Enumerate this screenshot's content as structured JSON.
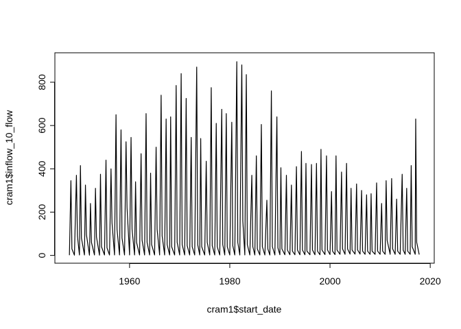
{
  "chart_data": {
    "type": "line",
    "xlabel": "cram1$start_date",
    "ylabel": "cram1$inflow_10_flow",
    "xlim": [
      1945.1,
      2020.8
    ],
    "ylim": [
      -36,
      936
    ],
    "xticks": [
      1960,
      1980,
      2000,
      2020
    ],
    "yticks": [
      0,
      200,
      400,
      600,
      800
    ],
    "color": "#000000",
    "x": [
      1948.0,
      1948.3,
      1948.5,
      1949.0,
      1949.4,
      1949.6,
      1950.0,
      1950.2,
      1950.4,
      1951.0,
      1951.2,
      1951.4,
      1952.0,
      1952.2,
      1952.4,
      1953.0,
      1953.2,
      1953.4,
      1954.0,
      1954.2,
      1954.4,
      1955.0,
      1955.3,
      1955.5,
      1956.0,
      1956.3,
      1956.5,
      1957.0,
      1957.3,
      1957.5,
      1958.0,
      1958.3,
      1958.5,
      1959.0,
      1959.3,
      1959.5,
      1960.0,
      1960.3,
      1960.5,
      1961.0,
      1961.2,
      1961.4,
      1962.0,
      1962.3,
      1962.5,
      1963.0,
      1963.3,
      1963.5,
      1964.0,
      1964.2,
      1964.4,
      1965.0,
      1965.3,
      1965.5,
      1966.0,
      1966.3,
      1966.5,
      1967.0,
      1967.3,
      1967.5,
      1968.0,
      1968.2,
      1968.4,
      1969.0,
      1969.3,
      1969.5,
      1970.0,
      1970.3,
      1970.5,
      1971.0,
      1971.3,
      1971.5,
      1972.0,
      1972.3,
      1972.5,
      1973.0,
      1973.4,
      1973.6,
      1974.0,
      1974.2,
      1974.4,
      1975.0,
      1975.3,
      1975.5,
      1976.0,
      1976.3,
      1976.5,
      1977.0,
      1977.3,
      1977.5,
      1978.0,
      1978.4,
      1978.6,
      1979.0,
      1979.3,
      1979.5,
      1980.0,
      1980.4,
      1980.6,
      1981.0,
      1981.4,
      1981.6,
      1982.0,
      1982.4,
      1982.6,
      1983.0,
      1983.3,
      1983.5,
      1984.0,
      1984.4,
      1984.6,
      1985.0,
      1985.3,
      1985.5,
      1986.0,
      1986.3,
      1986.5,
      1987.0,
      1987.4,
      1987.6,
      1988.0,
      1988.3,
      1988.5,
      1989.0,
      1989.4,
      1989.6,
      1990.0,
      1990.2,
      1990.4,
      1991.0,
      1991.3,
      1991.5,
      1992.0,
      1992.3,
      1992.5,
      1993.0,
      1993.3,
      1993.5,
      1994.0,
      1994.3,
      1994.5,
      1995.0,
      1995.2,
      1995.4,
      1996.0,
      1996.3,
      1996.5,
      1997.0,
      1997.3,
      1997.5,
      1998.0,
      1998.2,
      1998.4,
      1999.0,
      1999.3,
      1999.5,
      2000.0,
      2000.3,
      2000.5,
      2001.0,
      2001.2,
      2001.4,
      2002.0,
      2002.3,
      2002.5,
      2003.0,
      2003.3,
      2003.5,
      2004.0,
      2004.2,
      2004.4,
      2005.0,
      2005.3,
      2005.5,
      2006.0,
      2006.3,
      2006.5,
      2007.0,
      2007.3,
      2007.5,
      2008.0,
      2008.2,
      2008.4,
      2009.0,
      2009.3,
      2009.5,
      2010.0,
      2010.3,
      2010.5,
      2011.0,
      2011.2,
      2011.4,
      2012.0,
      2012.3,
      2012.5,
      2013.0,
      2013.3,
      2013.5,
      2014.0,
      2014.4,
      2014.6,
      2015.0,
      2015.3,
      2015.5,
      2016.0,
      2016.2,
      2016.4,
      2017.0,
      2017.1,
      2017.3,
      2017.8
    ],
    "values": [
      1,
      345,
      30,
      1,
      370,
      90,
      2,
      415,
      80,
      2,
      325,
      95,
      1,
      240,
      60,
      2,
      310,
      85,
      1,
      375,
      40,
      2,
      440,
      35,
      2,
      400,
      150,
      2,
      650,
      120,
      2,
      580,
      80,
      2,
      525,
      220,
      2,
      545,
      120,
      2,
      340,
      60,
      2,
      470,
      70,
      2,
      655,
      60,
      2,
      380,
      50,
      2,
      500,
      120,
      2,
      740,
      90,
      2,
      630,
      50,
      2,
      640,
      40,
      2,
      785,
      60,
      2,
      840,
      50,
      2,
      725,
      45,
      2,
      545,
      40,
      2,
      870,
      50,
      2,
      540,
      40,
      2,
      435,
      60,
      2,
      775,
      45,
      2,
      610,
      40,
      2,
      675,
      50,
      2,
      655,
      40,
      2,
      615,
      45,
      2,
      895,
      60,
      2,
      880,
      160,
      2,
      835,
      50,
      2,
      370,
      40,
      2,
      460,
      30,
      2,
      605,
      40,
      2,
      255,
      30,
      2,
      760,
      40,
      2,
      640,
      35,
      3,
      405,
      30,
      3,
      370,
      25,
      3,
      325,
      20,
      3,
      410,
      25,
      3,
      480,
      25,
      3,
      425,
      20,
      3,
      420,
      25,
      3,
      425,
      20,
      3,
      490,
      25,
      4,
      460,
      25,
      4,
      295,
      20,
      4,
      460,
      25,
      5,
      385,
      30,
      5,
      425,
      30,
      6,
      310,
      25,
      6,
      330,
      25,
      6,
      300,
      20,
      5,
      280,
      20,
      5,
      285,
      20,
      5,
      335,
      20,
      5,
      240,
      20,
      5,
      345,
      70,
      5,
      355,
      30,
      5,
      260,
      20,
      5,
      375,
      25,
      5,
      310,
      20,
      5,
      415,
      40,
      5,
      630,
      60,
      4
    ]
  }
}
